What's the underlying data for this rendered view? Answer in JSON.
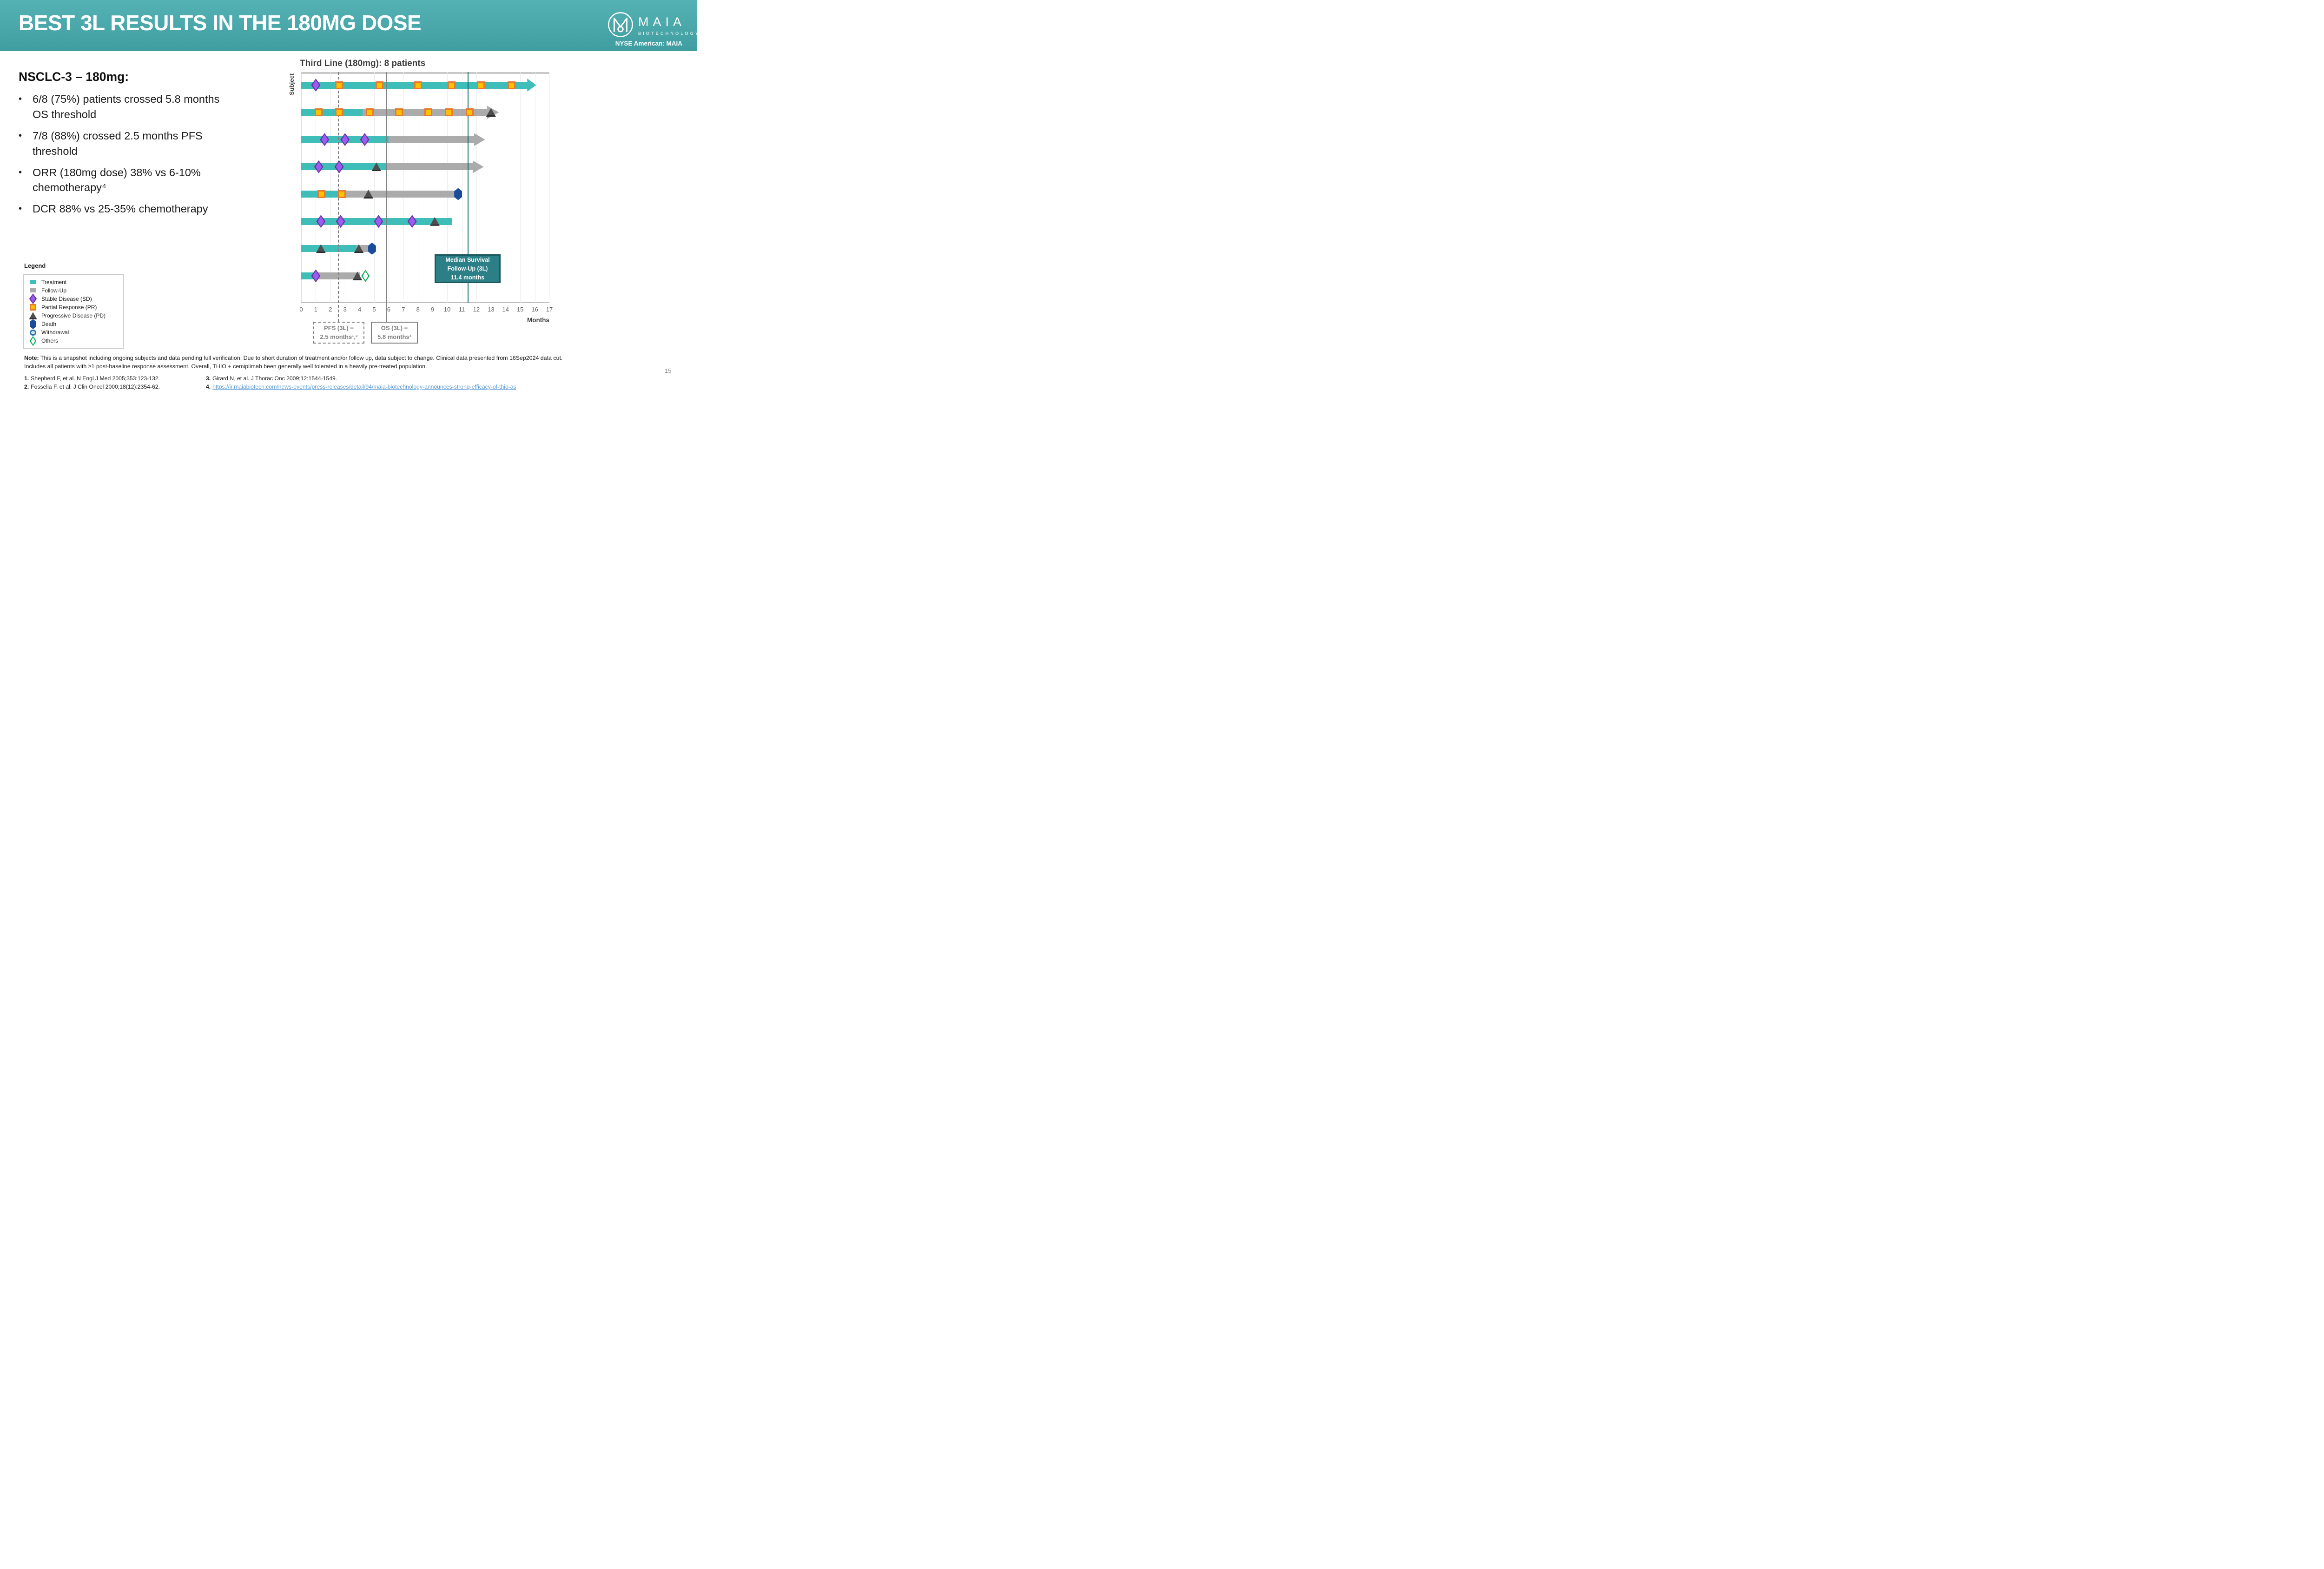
{
  "slide": {
    "title": "BEST 3L RESULTS IN THE 180MG DOSE",
    "page_number": "15",
    "header": {
      "logo_text": "MAIA",
      "logo_subtext": "BIOTECHNOLOGY",
      "ticker": "NYSE American: MAIA"
    },
    "colors": {
      "header_teal": "#46a4a7",
      "treatment": "#3fbdb8",
      "followup": "#ababab",
      "sd_fill": "#9a5df0",
      "sd_border": "#6b2fa3",
      "pr_fill": "#ffc000",
      "pr_border": "#e87a2c",
      "pd_fill": "#4d4d4d",
      "death_fill": "#1b4c9c",
      "withdrawal_fill": "#cfe8f7",
      "withdrawal_border": "#2e74b5",
      "others_border": "#00b050",
      "ref_gray": "#7f7f7f",
      "median_teal": "#176a6e",
      "link_blue": "#5b9bd5"
    }
  },
  "left_panel": {
    "heading": "NSCLC-3 – 180mg:",
    "bullets": [
      "6/8 (75%) patients crossed 5.8 months OS threshold",
      "7/8 (88%) crossed 2.5 months PFS threshold",
      "ORR (180mg dose) 38% vs 6-10% chemotherapy⁴",
      "DCR 88% vs 25-35% chemotherapy"
    ]
  },
  "legend": {
    "title": "Legend",
    "items": [
      {
        "type": "treatment",
        "label": "Treatment"
      },
      {
        "type": "followup",
        "label": "Follow-Up"
      },
      {
        "type": "SD",
        "label": "Stable Disease (SD)"
      },
      {
        "type": "PR",
        "label": "Partial Response (PR)"
      },
      {
        "type": "PD",
        "label": "Progressive Disease (PD)"
      },
      {
        "type": "death",
        "label": "Death"
      },
      {
        "type": "withdrawal",
        "label": "Withdrawal"
      },
      {
        "type": "others",
        "label": "Others"
      }
    ]
  },
  "chart_data": {
    "type": "swimmer",
    "title": "Third Line (180mg): 8 patients",
    "xlabel": "Months",
    "ylabel": "Subject",
    "xlim": [
      0,
      17
    ],
    "x_ticks": [
      0,
      1,
      2,
      3,
      4,
      5,
      6,
      7,
      8,
      9,
      10,
      11,
      12,
      13,
      14,
      15,
      16,
      17
    ],
    "grid": true,
    "reference_lines": [
      {
        "x": 2.5,
        "style": "dashed",
        "color": "#7f7f7f",
        "box_lines": [
          "PFS (3L) =",
          "2.5 months¹,²"
        ]
      },
      {
        "x": 5.8,
        "style": "solid",
        "color": "#7f7f7f",
        "box_lines": [
          "OS (3L) =",
          "5.8 months³"
        ]
      },
      {
        "x": 11.4,
        "style": "solid",
        "color": "#176a6e"
      }
    ],
    "median_box": {
      "lines": [
        "Median Survival",
        "Follow-Up (3L)",
        "11.4 months"
      ],
      "x_center": 11.4
    },
    "subjects": [
      {
        "id": 1,
        "bars": [
          {
            "kind": "treatment",
            "start": 0,
            "end": 15.5
          }
        ],
        "arrow": {
          "kind": "treatment",
          "tip": 16.1
        },
        "events": [
          {
            "type": "SD",
            "x": 1.0
          },
          {
            "type": "PR",
            "x": 2.6
          },
          {
            "type": "PR",
            "x": 5.35
          },
          {
            "type": "PR",
            "x": 8.0
          },
          {
            "type": "PR",
            "x": 10.3
          },
          {
            "type": "PR",
            "x": 12.3
          },
          {
            "type": "PR",
            "x": 14.4
          }
        ]
      },
      {
        "id": 2,
        "bars": [
          {
            "kind": "treatment",
            "start": 0,
            "end": 4.2
          },
          {
            "kind": "followup",
            "start": 4.2,
            "end": 12.75
          }
        ],
        "arrow": {
          "kind": "followup",
          "tip": 13.55
        },
        "events": [
          {
            "type": "PR",
            "x": 1.2
          },
          {
            "type": "PR",
            "x": 2.6
          },
          {
            "type": "PR",
            "x": 4.7
          },
          {
            "type": "PR",
            "x": 6.7
          },
          {
            "type": "PR",
            "x": 8.7
          },
          {
            "type": "PR",
            "x": 10.1
          },
          {
            "type": "PR",
            "x": 11.55
          },
          {
            "type": "PD",
            "x": 13.0
          }
        ]
      },
      {
        "id": 3,
        "bars": [
          {
            "kind": "treatment",
            "start": 0,
            "end": 6.0
          },
          {
            "kind": "followup",
            "start": 6.0,
            "end": 11.85
          }
        ],
        "arrow": {
          "kind": "followup",
          "tip": 12.6
        },
        "events": [
          {
            "type": "SD",
            "x": 1.6
          },
          {
            "type": "SD",
            "x": 3.0
          },
          {
            "type": "SD",
            "x": 4.35
          }
        ]
      },
      {
        "id": 4,
        "bars": [
          {
            "kind": "treatment",
            "start": 0,
            "end": 5.9
          },
          {
            "kind": "followup",
            "start": 5.9,
            "end": 11.75
          }
        ],
        "arrow": {
          "kind": "followup",
          "tip": 12.5
        },
        "events": [
          {
            "type": "SD",
            "x": 1.2
          },
          {
            "type": "SD",
            "x": 2.6
          },
          {
            "type": "PD",
            "x": 5.15
          }
        ]
      },
      {
        "id": 5,
        "bars": [
          {
            "kind": "treatment",
            "start": 0,
            "end": 2.5
          },
          {
            "kind": "followup",
            "start": 2.5,
            "end": 10.7
          }
        ],
        "arrow": null,
        "events": [
          {
            "type": "PR",
            "x": 1.4
          },
          {
            "type": "PR",
            "x": 2.8
          },
          {
            "type": "PD",
            "x": 4.6
          },
          {
            "type": "death",
            "x": 10.75
          }
        ]
      },
      {
        "id": 6,
        "bars": [
          {
            "kind": "treatment",
            "start": 0,
            "end": 10.3
          }
        ],
        "arrow": null,
        "events": [
          {
            "type": "SD",
            "x": 1.35
          },
          {
            "type": "SD",
            "x": 2.7
          },
          {
            "type": "SD",
            "x": 5.3
          },
          {
            "type": "SD",
            "x": 7.6
          },
          {
            "type": "PD",
            "x": 9.15
          }
        ]
      },
      {
        "id": 7,
        "bars": [
          {
            "kind": "treatment",
            "start": 0,
            "end": 3.8
          },
          {
            "kind": "followup",
            "start": 3.8,
            "end": 4.6
          }
        ],
        "arrow": null,
        "events": [
          {
            "type": "PD",
            "x": 1.35
          },
          {
            "type": "PD",
            "x": 3.95
          },
          {
            "type": "death",
            "x": 4.85
          }
        ]
      },
      {
        "id": 8,
        "bars": [
          {
            "kind": "treatment",
            "start": 0,
            "end": 0.9
          },
          {
            "kind": "followup",
            "start": 0.9,
            "end": 4.05
          }
        ],
        "arrow": null,
        "events": [
          {
            "type": "SD",
            "x": 1.0
          },
          {
            "type": "PD",
            "x": 3.85
          },
          {
            "type": "others",
            "x": 4.4
          }
        ]
      }
    ]
  },
  "footnote": {
    "note_label": "Note:",
    "lines": [
      "This is a snapshot including ongoing subjects and data pending full verification. Due to short duration of treatment and/or follow up, data subject to change. Clinical data presented from 16Sep2024 data cut.",
      "Includes all patients with ≥1 post-baseline response assessment. Overall, THIO + cemiplimab been generally well tolerated in a heavily pre-treated population."
    ]
  },
  "references": {
    "col1": [
      {
        "num": "1.",
        "text": "Shepherd F, et al. N Engl J Med 2005;353:123-132."
      },
      {
        "num": "2.",
        "text": "Fossella F, et al. J Clin Oncol 2000;18(12):2354-62."
      }
    ],
    "col2": [
      {
        "num": "3.",
        "text": "Girard N, et al. J Thorac Onc 2009;12:1544-1549."
      },
      {
        "num": "4.",
        "text": "https://ir.maiabiotech.com/news-events/press-releases/detail/94/maia-biotechnology-announces-strong-efficacy-of-thio-as",
        "link": true
      }
    ]
  }
}
